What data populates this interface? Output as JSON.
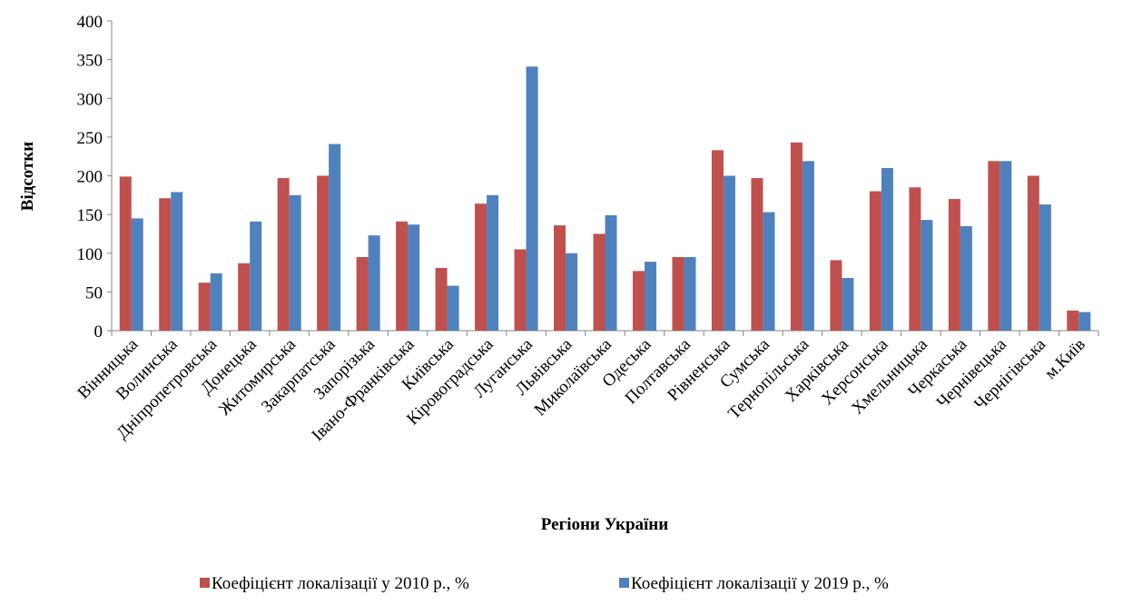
{
  "chart_data": {
    "type": "bar",
    "y_label": "Відсотки",
    "x_label": "Регіони України",
    "categories": [
      "Вінницька",
      "Волинська",
      "Дніпропетровська",
      "Донецька",
      "Житомирська",
      "Закарпатська",
      "Запорізька",
      "Івано-Франківська",
      "Київська",
      "Кіровоградська",
      "Луганська",
      "Львівська",
      "Миколаївська",
      "Одеська",
      "Полтавська",
      "Рівненська",
      "Сумська",
      "Тернопільська",
      "Харківська",
      "Херсонська",
      "Хмельницька",
      "Черкаська",
      "Чернівецька",
      "Чернігівська",
      "м.Київ"
    ],
    "series": [
      {
        "name": "Коефіцієнт локалізації у 2010 р., %",
        "color": "#c0504d",
        "values": [
          199,
          171,
          62,
          87,
          197,
          200,
          95,
          141,
          81,
          164,
          105,
          136,
          125,
          77,
          95,
          233,
          197,
          243,
          91,
          180,
          185,
          170,
          219,
          200,
          26
        ]
      },
      {
        "name": "Коефіцієнт локалізації у 2019 р., %",
        "color": "#4f81bd",
        "values": [
          145,
          179,
          74,
          141,
          175,
          241,
          123,
          137,
          58,
          175,
          341,
          100,
          149,
          89,
          95,
          200,
          153,
          219,
          68,
          210,
          143,
          135,
          219,
          163,
          24
        ]
      }
    ],
    "ylim": [
      0,
      400
    ],
    "yticks": [
      0,
      50,
      100,
      150,
      200,
      250,
      300,
      350,
      400
    ],
    "grid": false,
    "legend": "bottom"
  }
}
